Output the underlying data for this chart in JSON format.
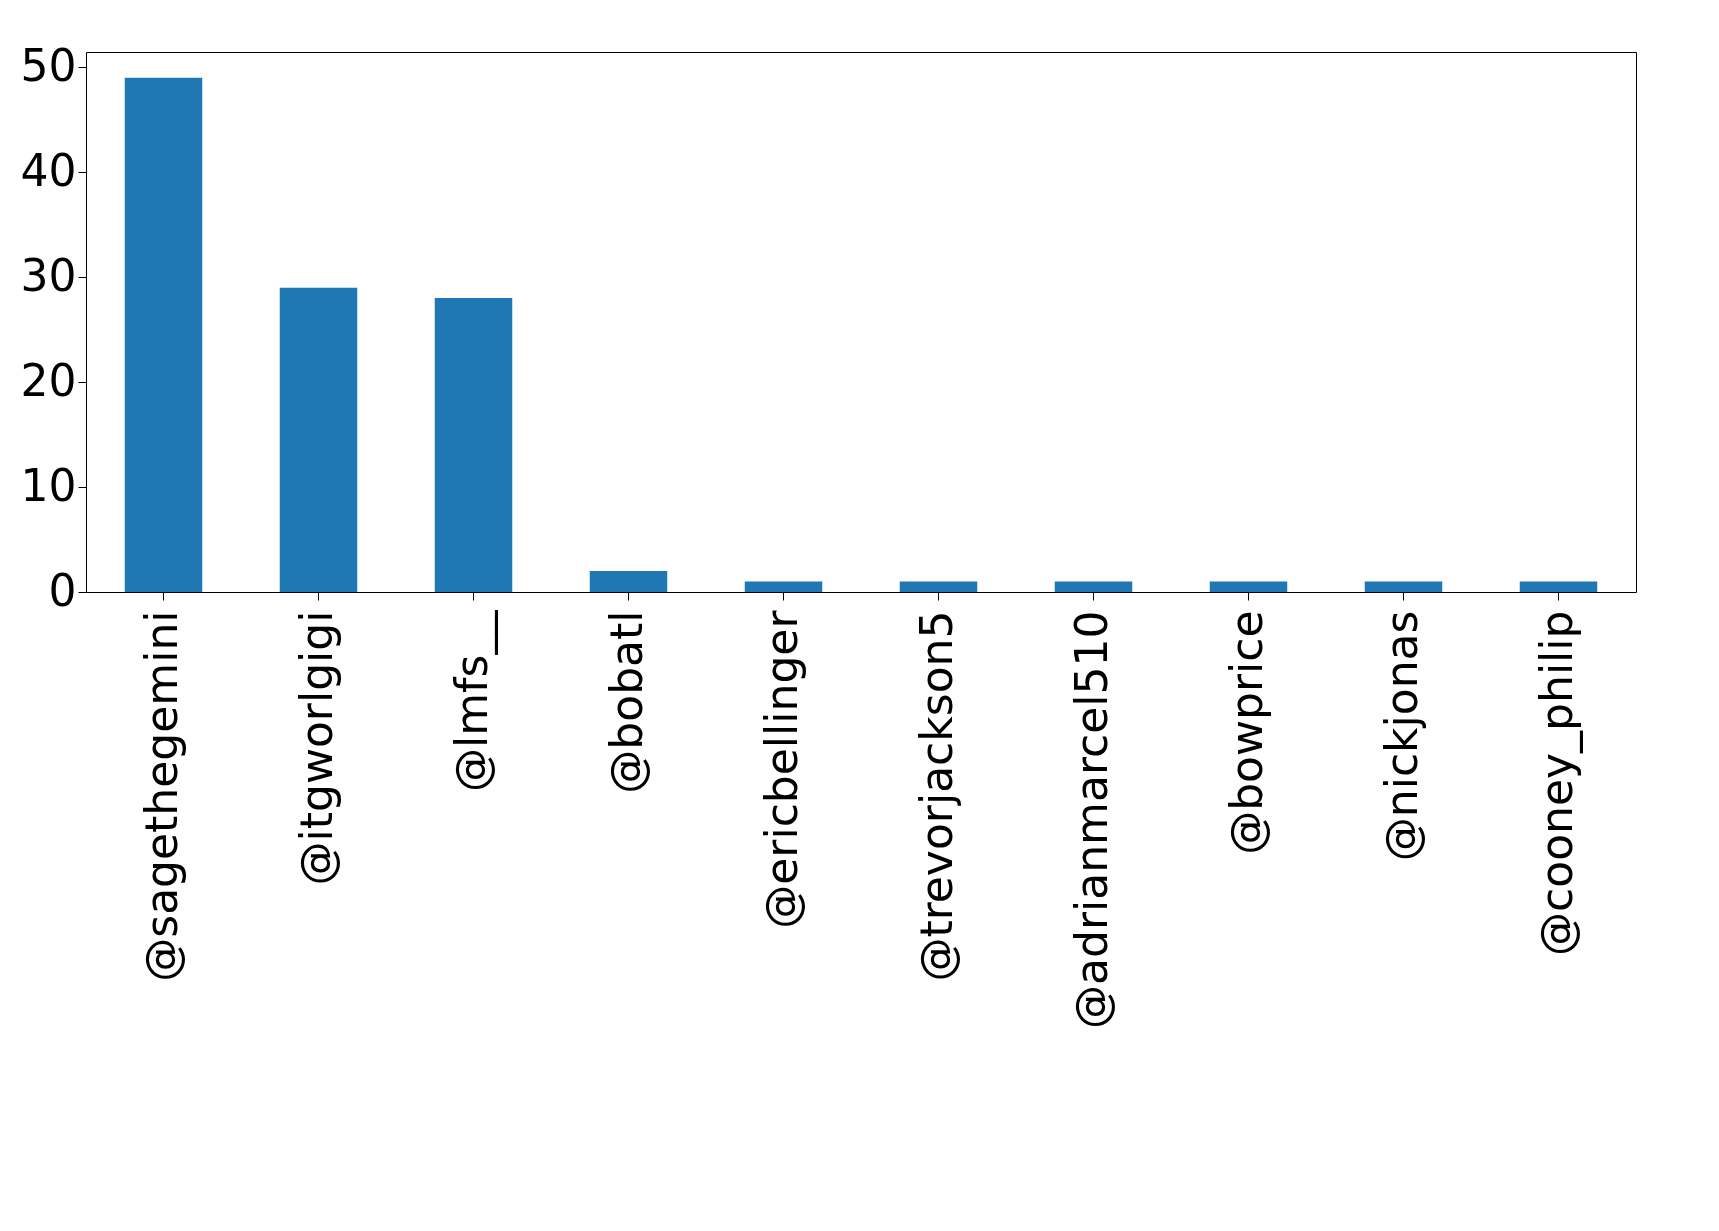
{
  "chart_data": {
    "type": "bar",
    "categories": [
      "@sagethegemini",
      "@itgworlgigi",
      "@lmfs__",
      "@bobatl",
      "@ericbellinger",
      "@trevorjackson5",
      "@adrianmarcel510",
      "@bowprice",
      "@nickjonas",
      "@cooney_philip"
    ],
    "values": [
      49,
      29,
      28,
      2,
      1,
      1,
      1,
      1,
      1,
      1
    ],
    "color": "#1f77b4",
    "ylim": [
      0,
      51.45
    ],
    "yticks": [
      0,
      10,
      20,
      30,
      40,
      50
    ],
    "grid": false
  }
}
